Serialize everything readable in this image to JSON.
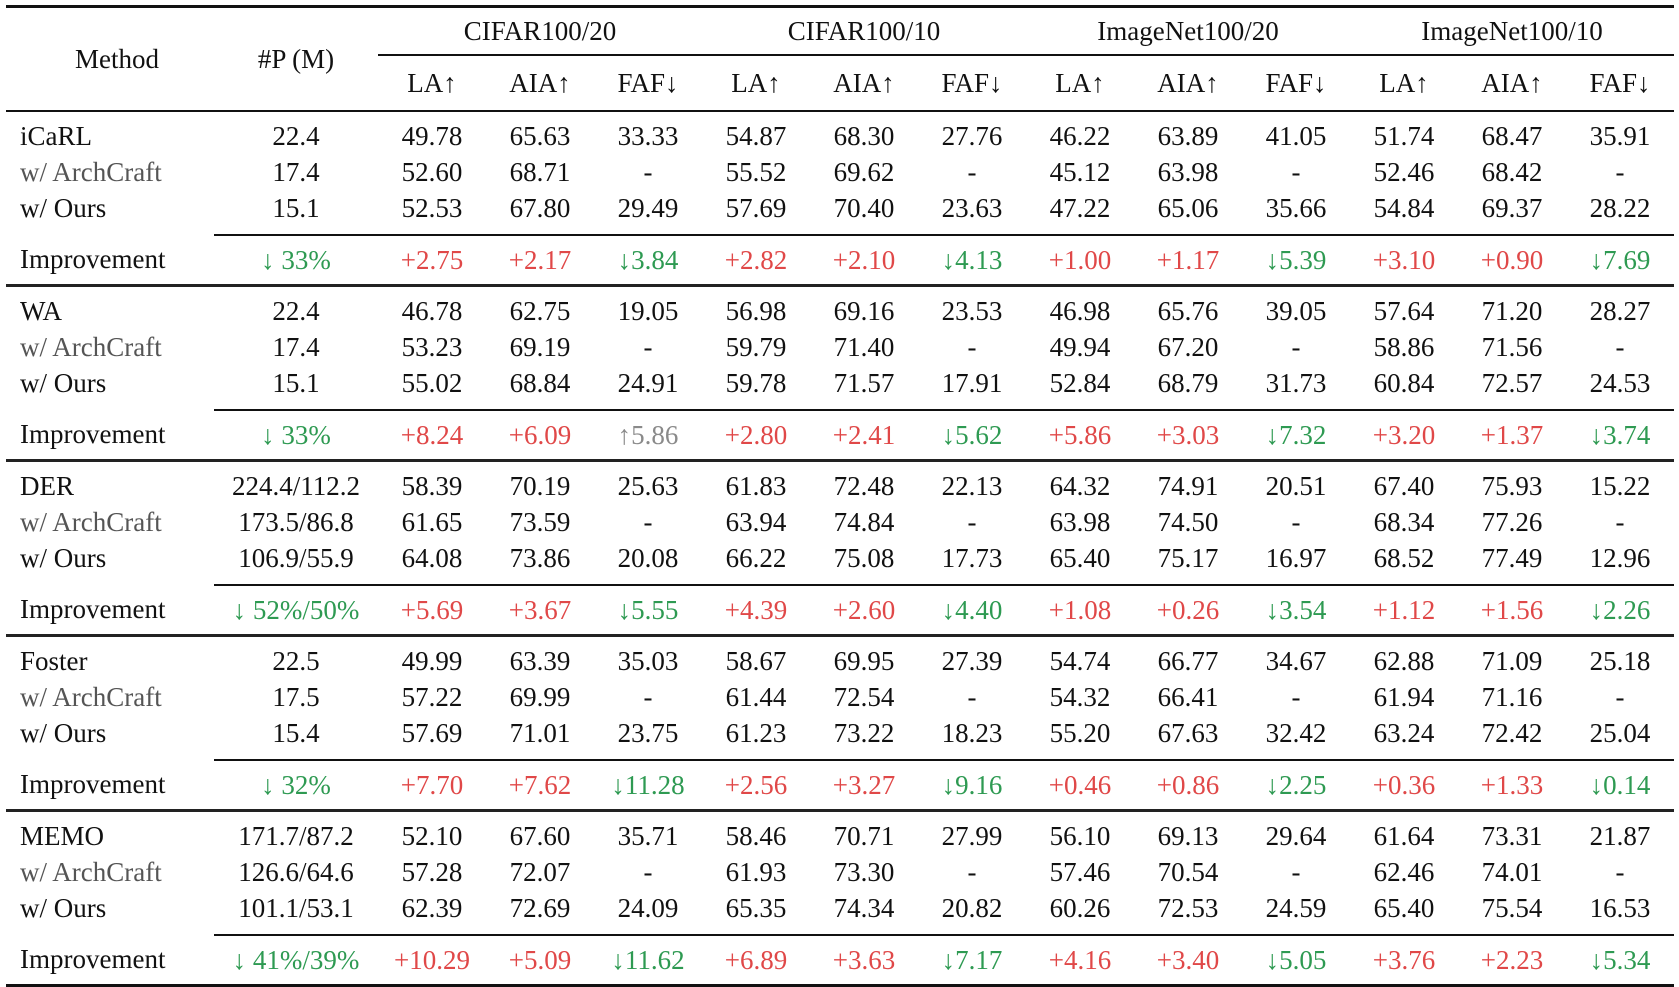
{
  "table": {
    "header": {
      "method": "Method",
      "params": "#P (M)",
      "datasets": [
        "CIFAR100/20",
        "CIFAR100/10",
        "ImageNet100/20",
        "ImageNet100/10"
      ],
      "metrics": [
        "LA↑",
        "AIA↑",
        "FAF↓",
        "LA↑",
        "AIA↑",
        "FAF↓",
        "LA↑",
        "AIA↑",
        "FAF↓",
        "LA↑",
        "AIA↑",
        "FAF↓"
      ]
    },
    "blocks": [
      {
        "rows": [
          {
            "method": "iCaRL",
            "params": "22.4",
            "values": [
              "49.78",
              "65.63",
              "33.33",
              "54.87",
              "68.30",
              "27.76",
              "46.22",
              "63.89",
              "41.05",
              "51.74",
              "68.47",
              "35.91"
            ],
            "bold": []
          },
          {
            "method": "w/ ArchCraft",
            "params": "17.4",
            "values": [
              "52.60",
              "68.71",
              "-",
              "55.52",
              "69.62",
              "-",
              "45.12",
              "63.98",
              "-",
              "52.46",
              "68.42",
              "-"
            ],
            "bold": [
              0,
              1
            ]
          },
          {
            "method": "w/ Ours",
            "params": "15.1",
            "values": [
              "52.53",
              "67.80",
              "29.49",
              "57.69",
              "70.40",
              "23.63",
              "47.22",
              "65.06",
              "35.66",
              "54.84",
              "69.37",
              "28.22"
            ],
            "bold": [
              2,
              3,
              4,
              5,
              6,
              7,
              8,
              9,
              10,
              11
            ]
          }
        ],
        "improvement": {
          "label": "Improvement",
          "params": "↓ 33%",
          "values": [
            "+2.75",
            "+2.17",
            "↓3.84",
            "+2.82",
            "+2.10",
            "↓4.13",
            "+1.00",
            "+1.17",
            "↓5.39",
            "+3.10",
            "+0.90",
            "↓7.69"
          ]
        }
      },
      {
        "rows": [
          {
            "method": "WA",
            "params": "22.4",
            "values": [
              "46.78",
              "62.75",
              "19.05",
              "56.98",
              "69.16",
              "23.53",
              "46.98",
              "65.76",
              "39.05",
              "57.64",
              "71.20",
              "28.27"
            ],
            "bold": [
              2
            ]
          },
          {
            "method": "w/ ArchCraft",
            "params": "17.4",
            "values": [
              "53.23",
              "69.19",
              "-",
              "59.79",
              "71.40",
              "-",
              "49.94",
              "67.20",
              "-",
              "58.86",
              "71.56",
              "-"
            ],
            "bold": [
              1,
              3
            ]
          },
          {
            "method": "w/ Ours",
            "params": "15.1",
            "values": [
              "55.02",
              "68.84",
              "24.91",
              "59.78",
              "71.57",
              "17.91",
              "52.84",
              "68.79",
              "31.73",
              "60.84",
              "72.57",
              "24.53"
            ],
            "bold": [
              0,
              4,
              5,
              6,
              7,
              8,
              9,
              10,
              11
            ]
          }
        ],
        "improvement": {
          "label": "Improvement",
          "params": "↓ 33%",
          "values": [
            "+8.24",
            "+6.09",
            "↑5.86",
            "+2.80",
            "+2.41",
            "↓5.62",
            "+5.86",
            "+3.03",
            "↓7.32",
            "+3.20",
            "+1.37",
            "↓3.74"
          ]
        }
      },
      {
        "rows": [
          {
            "method": "DER",
            "params": "224.4/112.2",
            "values": [
              "58.39",
              "70.19",
              "25.63",
              "61.83",
              "72.48",
              "22.13",
              "64.32",
              "74.91",
              "20.51",
              "67.40",
              "75.93",
              "15.22"
            ],
            "bold": []
          },
          {
            "method": "w/ ArchCraft",
            "params": "173.5/86.8",
            "values": [
              "61.65",
              "73.59",
              "-",
              "63.94",
              "74.84",
              "-",
              "63.98",
              "74.50",
              "-",
              "68.34",
              "77.26",
              "-"
            ],
            "bold": []
          },
          {
            "method": "w/ Ours",
            "params": "106.9/55.9",
            "values": [
              "64.08",
              "73.86",
              "20.08",
              "66.22",
              "75.08",
              "17.73",
              "65.40",
              "75.17",
              "16.97",
              "68.52",
              "77.49",
              "12.96"
            ],
            "bold": [
              0,
              1,
              2,
              3,
              4,
              5,
              6,
              7,
              8,
              9,
              10,
              11
            ]
          }
        ],
        "improvement": {
          "label": "Improvement",
          "params": "↓ 52%/50%",
          "values": [
            "+5.69",
            "+3.67",
            "↓5.55",
            "+4.39",
            "+2.60",
            "↓4.40",
            "+1.08",
            "+0.26",
            "↓3.54",
            "+1.12",
            "+1.56",
            "↓2.26"
          ]
        }
      },
      {
        "rows": [
          {
            "method": "Foster",
            "params": "22.5",
            "values": [
              "49.99",
              "63.39",
              "35.03",
              "58.67",
              "69.95",
              "27.39",
              "54.74",
              "66.77",
              "34.67",
              "62.88",
              "71.09",
              "25.18"
            ],
            "bold": []
          },
          {
            "method": "w/ ArchCraft",
            "params": "17.5",
            "values": [
              "57.22",
              "69.99",
              "-",
              "61.44",
              "72.54",
              "-",
              "54.32",
              "66.41",
              "-",
              "61.94",
              "71.16",
              "-"
            ],
            "bold": [
              3
            ]
          },
          {
            "method": "w/ Ours",
            "params": "15.4",
            "values": [
              "57.69",
              "71.01",
              "23.75",
              "61.23",
              "73.22",
              "18.23",
              "55.20",
              "67.63",
              "32.42",
              "63.24",
              "72.42",
              "25.04"
            ],
            "bold": [
              0,
              1,
              2,
              4,
              5,
              6,
              7,
              8,
              9,
              10,
              11
            ]
          }
        ],
        "improvement": {
          "label": "Improvement",
          "params": "↓ 32%",
          "values": [
            "+7.70",
            "+7.62",
            "↓11.28",
            "+2.56",
            "+3.27",
            "↓9.16",
            "+0.46",
            "+0.86",
            "↓2.25",
            "+0.36",
            "+1.33",
            "↓0.14"
          ]
        }
      },
      {
        "rows": [
          {
            "method": "MEMO",
            "params": "171.7/87.2",
            "values": [
              "52.10",
              "67.60",
              "35.71",
              "58.46",
              "70.71",
              "27.99",
              "56.10",
              "69.13",
              "29.64",
              "61.64",
              "73.31",
              "21.87"
            ],
            "bold": []
          },
          {
            "method": "w/ ArchCraft",
            "params": "126.6/64.6",
            "values": [
              "57.28",
              "72.07",
              "-",
              "61.93",
              "73.30",
              "-",
              "57.46",
              "70.54",
              "-",
              "62.46",
              "74.01",
              "-"
            ],
            "bold": []
          },
          {
            "method": "w/ Ours",
            "params": "101.1/53.1",
            "values": [
              "62.39",
              "72.69",
              "24.09",
              "65.35",
              "74.34",
              "20.82",
              "60.26",
              "72.53",
              "24.59",
              "65.40",
              "75.54",
              "16.53"
            ],
            "bold": [
              0,
              1,
              2,
              3,
              4,
              5,
              6,
              7,
              8,
              9,
              10,
              11
            ]
          }
        ],
        "improvement": {
          "label": "Improvement",
          "params": "↓ 41%/39%",
          "values": [
            "+10.29",
            "+5.09",
            "↓11.62",
            "+6.89",
            "+3.63",
            "↓7.17",
            "+4.16",
            "+3.40",
            "↓5.05",
            "+3.76",
            "+2.23",
            "↓5.34"
          ]
        }
      }
    ],
    "colors": {
      "increase": "#e04848",
      "decrease": "#2e9a52",
      "neutral": "#8a8a8a",
      "variant_label": "#555555"
    }
  }
}
